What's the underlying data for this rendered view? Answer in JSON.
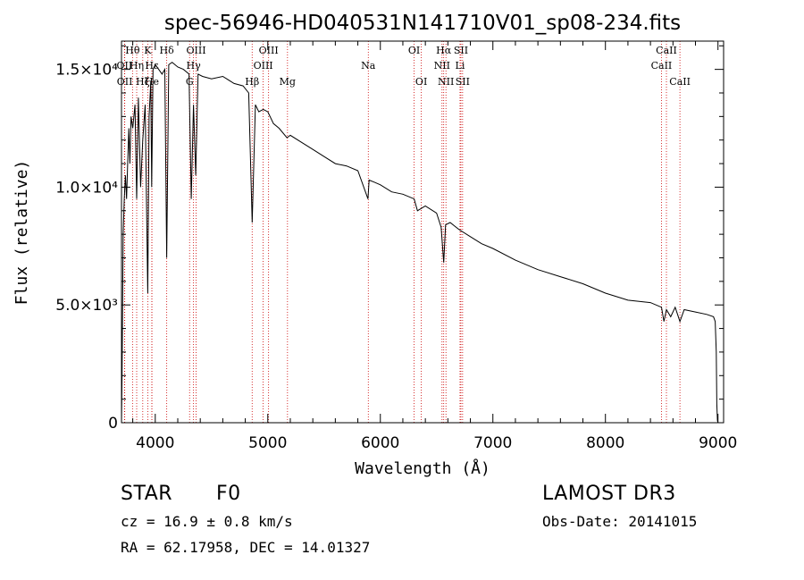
{
  "chart_data": {
    "type": "line",
    "title": "spec-56946-HD040531N141710V01_sp08-234.fits",
    "xlabel": "Wavelength (Å)",
    "ylabel": "Flux (relative)",
    "xlim": [
      3700,
      9050
    ],
    "ylim": [
      0,
      16200
    ],
    "xticks": [
      4000,
      5000,
      6000,
      7000,
      8000,
      9000
    ],
    "xtick_labels": [
      "4000",
      "5000",
      "6000",
      "7000",
      "8000",
      "9000"
    ],
    "yticks": [
      0,
      5000,
      10000,
      15000
    ],
    "ytick_labels": [
      "0",
      "5.0×10³",
      "1.0×10⁴",
      "1.5×10⁴"
    ],
    "series": [
      {
        "name": "flux",
        "x": [
          3700,
          3705,
          3715,
          3725,
          3735,
          3745,
          3755,
          3765,
          3775,
          3785,
          3800,
          3820,
          3835,
          3850,
          3870,
          3889,
          3910,
          3933,
          3945,
          3960,
          3968,
          3980,
          4000,
          4030,
          4060,
          4085,
          4102,
          4120,
          4150,
          4200,
          4250,
          4300,
          4320,
          4340,
          4360,
          4380,
          4420,
          4500,
          4600,
          4700,
          4780,
          4830,
          4861,
          4890,
          4920,
          4960,
          5000,
          5050,
          5100,
          5170,
          5200,
          5300,
          5400,
          5500,
          5600,
          5700,
          5800,
          5890,
          5900,
          5950,
          6000,
          6100,
          6200,
          6300,
          6330,
          6400,
          6500,
          6540,
          6563,
          6580,
          6620,
          6700,
          6800,
          6900,
          7000,
          7200,
          7400,
          7600,
          7800,
          8000,
          8200,
          8400,
          8498,
          8520,
          8542,
          8580,
          8620,
          8662,
          8700,
          8800,
          8900,
          8960,
          8975,
          8985,
          8990,
          8995,
          9000
        ],
        "y": [
          0,
          2000,
          8000,
          9500,
          10500,
          9500,
          11000,
          12500,
          11000,
          13000,
          12500,
          13500,
          9500,
          13800,
          10000,
          12000,
          13500,
          5500,
          13000,
          14500,
          10000,
          15000,
          15200,
          15000,
          14800,
          15000,
          7000,
          15200,
          15300,
          15100,
          15000,
          14800,
          9500,
          13500,
          10500,
          14800,
          14700,
          14600,
          14700,
          14400,
          14300,
          14000,
          8500,
          13500,
          13200,
          13300,
          13200,
          12700,
          12500,
          12100,
          12200,
          11900,
          11600,
          11300,
          11000,
          10900,
          10700,
          9500,
          10300,
          10200,
          10100,
          9800,
          9700,
          9500,
          9000,
          9200,
          8900,
          8300,
          6800,
          8400,
          8500,
          8200,
          7900,
          7600,
          7400,
          6900,
          6500,
          6200,
          5900,
          5500,
          5200,
          5100,
          4900,
          4300,
          4800,
          4500,
          4900,
          4300,
          4800,
          4700,
          4600,
          4500,
          4300,
          3000,
          800,
          100,
          0
        ]
      }
    ],
    "line_markers": [
      {
        "name": "Hθ",
        "wavelength": 3798,
        "label_row": 0
      },
      {
        "name": "OII",
        "wavelength": 3727,
        "label_row": 1
      },
      {
        "name": "OII",
        "wavelength": 3729,
        "label_row": 2
      },
      {
        "name": "Hη",
        "wavelength": 3835,
        "label_row": 1
      },
      {
        "name": "Hζ",
        "wavelength": 3889,
        "label_row": 2
      },
      {
        "name": "K",
        "wavelength": 3933,
        "label_row": 0
      },
      {
        "name": "Hε",
        "wavelength": 3970,
        "label_row": 1
      },
      {
        "name": "He",
        "wavelength": 3970,
        "label_row": 2
      },
      {
        "name": "Hδ",
        "wavelength": 4102,
        "label_row": 0
      },
      {
        "name": "Hγ",
        "wavelength": 4340,
        "label_row": 1
      },
      {
        "name": "OIII",
        "wavelength": 4363,
        "label_row": 0
      },
      {
        "name": "G",
        "wavelength": 4305,
        "label_row": 2
      },
      {
        "name": "Hβ",
        "wavelength": 4861,
        "label_row": 2
      },
      {
        "name": "OIII",
        "wavelength": 4959,
        "label_row": 1
      },
      {
        "name": "OIII",
        "wavelength": 5007,
        "label_row": 0
      },
      {
        "name": "Mg",
        "wavelength": 5175,
        "label_row": 2
      },
      {
        "name": "Na",
        "wavelength": 5893,
        "label_row": 1
      },
      {
        "name": "OI",
        "wavelength": 6300,
        "label_row": 0
      },
      {
        "name": "OI",
        "wavelength": 6364,
        "label_row": 2
      },
      {
        "name": "Hα",
        "wavelength": 6563,
        "label_row": 0
      },
      {
        "name": "NII",
        "wavelength": 6548,
        "label_row": 1
      },
      {
        "name": "NII",
        "wavelength": 6583,
        "label_row": 2
      },
      {
        "name": "SII",
        "wavelength": 6716,
        "label_row": 0
      },
      {
        "name": "Li",
        "wavelength": 6708,
        "label_row": 1
      },
      {
        "name": "SII",
        "wavelength": 6731,
        "label_row": 2
      },
      {
        "name": "CaII",
        "wavelength": 8542,
        "label_row": 0
      },
      {
        "name": "CaII",
        "wavelength": 8498,
        "label_row": 1
      },
      {
        "name": "CaII",
        "wavelength": 8662,
        "label_row": 2
      }
    ]
  },
  "info": {
    "object_class": "STAR",
    "subclass": "F0",
    "survey": "LAMOST DR3",
    "redshift": "cz = 16.9 ± 0.8 km/s",
    "obs_date": "Obs-Date: 20141015",
    "coords": "RA =  62.17958, DEC =  14.01327"
  },
  "colors": {
    "marker": "#cc0000",
    "line": "#000000"
  }
}
